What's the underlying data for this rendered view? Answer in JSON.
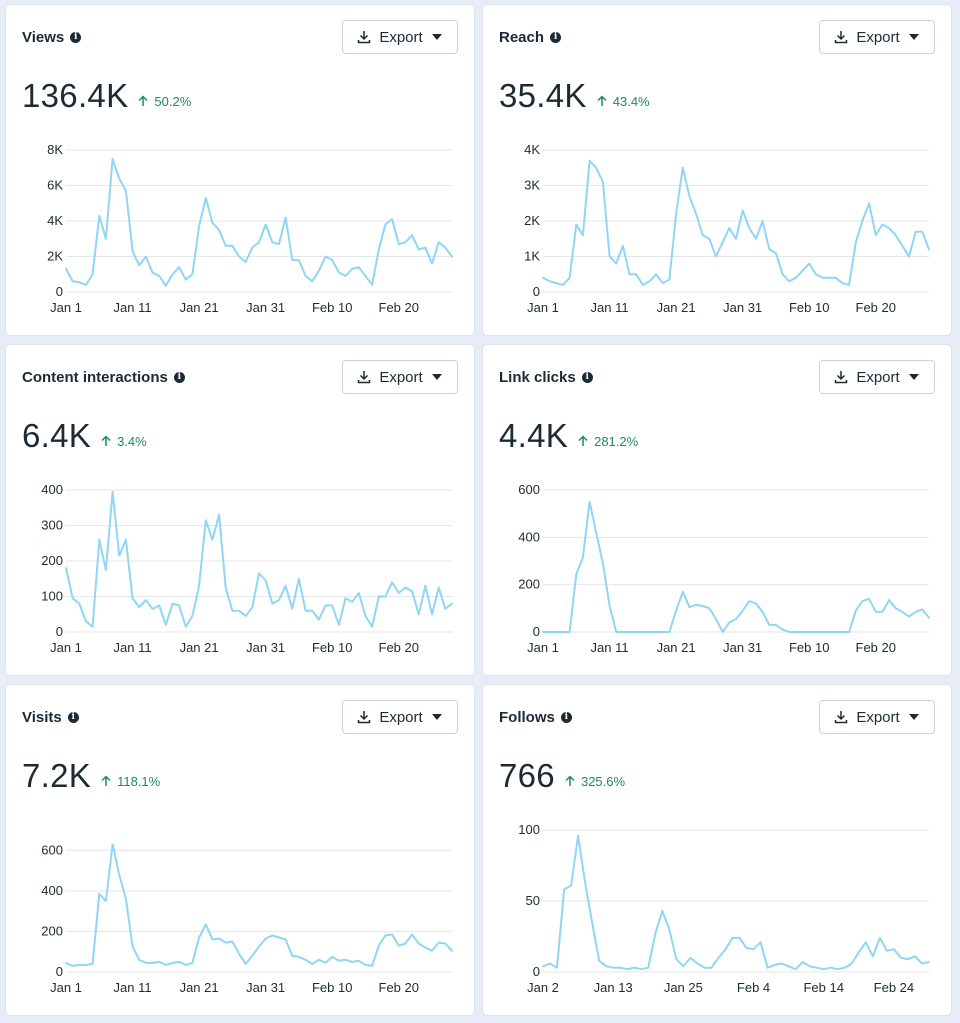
{
  "export_label": "Export",
  "colors": {
    "line": "#8fd6f5",
    "positive": "#1f8a5b",
    "text": "#1c2b33",
    "grid": "#e4e6eb"
  },
  "cards": [
    {
      "title": "Views",
      "value": "136.4K",
      "change": "50.2%",
      "change_direction": "up",
      "chart_data": {
        "type": "line",
        "title": "Views",
        "xlabel": "",
        "ylabel": "",
        "ylim": [
          0,
          8000
        ],
        "y_ticks": [
          0,
          2000,
          4000,
          6000,
          8000
        ],
        "y_tick_labels": [
          "0",
          "2K",
          "4K",
          "6K",
          "8K"
        ],
        "x_tick_labels": [
          "Jan 1",
          "Jan 11",
          "Jan 21",
          "Jan 31",
          "Feb 10",
          "Feb 20"
        ],
        "x_tick_indices": [
          0,
          10,
          20,
          30,
          40,
          50
        ],
        "values": [
          1300,
          600,
          550,
          400,
          1000,
          4300,
          3000,
          7500,
          6400,
          5700,
          2300,
          1500,
          2000,
          1100,
          900,
          350,
          1000,
          1400,
          700,
          1000,
          3700,
          5300,
          3900,
          3500,
          2600,
          2600,
          2000,
          1700,
          2500,
          2800,
          3800,
          2800,
          2700,
          4200,
          1800,
          1800,
          900,
          600,
          1200,
          2000,
          1800,
          1100,
          900,
          1300,
          1400,
          900,
          400,
          2400,
          3800,
          4100,
          2700,
          2800,
          3200,
          2400,
          2500,
          1600,
          2800,
          2500,
          2000
        ]
      }
    },
    {
      "title": "Reach",
      "value": "35.4K",
      "change": "43.4%",
      "change_direction": "up",
      "chart_data": {
        "type": "line",
        "title": "Reach",
        "xlabel": "",
        "ylabel": "",
        "ylim": [
          0,
          4000
        ],
        "y_ticks": [
          0,
          1000,
          2000,
          3000,
          4000
        ],
        "y_tick_labels": [
          "0",
          "1K",
          "2K",
          "3K",
          "4K"
        ],
        "x_tick_labels": [
          "Jan 1",
          "Jan 11",
          "Jan 21",
          "Jan 31",
          "Feb 10",
          "Feb 20"
        ],
        "x_tick_indices": [
          0,
          10,
          20,
          30,
          40,
          50
        ],
        "values": [
          400,
          300,
          250,
          200,
          400,
          1900,
          1600,
          3700,
          3500,
          3100,
          1000,
          800,
          1300,
          500,
          500,
          200,
          300,
          500,
          250,
          350,
          2200,
          3500,
          2700,
          2200,
          1600,
          1500,
          1000,
          1400,
          1800,
          1500,
          2300,
          1800,
          1500,
          2000,
          1200,
          1100,
          500,
          300,
          400,
          600,
          800,
          500,
          400,
          400,
          400,
          250,
          200,
          1400,
          2000,
          2500,
          1600,
          1900,
          1800,
          1600,
          1300,
          1000,
          1700,
          1700,
          1200
        ]
      }
    },
    {
      "title": "Content interactions",
      "value": "6.4K",
      "change": "3.4%",
      "change_direction": "up",
      "chart_data": {
        "type": "line",
        "title": "Content interactions",
        "xlabel": "",
        "ylabel": "",
        "ylim": [
          0,
          400
        ],
        "y_ticks": [
          0,
          100,
          200,
          300,
          400
        ],
        "y_tick_labels": [
          "0",
          "100",
          "200",
          "300",
          "400"
        ],
        "x_tick_labels": [
          "Jan 1",
          "Jan 11",
          "Jan 21",
          "Jan 31",
          "Feb 10",
          "Feb 20"
        ],
        "x_tick_indices": [
          0,
          10,
          20,
          30,
          40,
          50
        ],
        "values": [
          180,
          95,
          80,
          30,
          15,
          260,
          175,
          395,
          215,
          260,
          95,
          70,
          90,
          65,
          75,
          20,
          80,
          75,
          15,
          45,
          130,
          315,
          260,
          330,
          125,
          60,
          60,
          45,
          70,
          165,
          145,
          80,
          90,
          130,
          65,
          150,
          60,
          60,
          35,
          75,
          75,
          20,
          95,
          85,
          110,
          45,
          15,
          100,
          100,
          140,
          110,
          125,
          115,
          50,
          130,
          50,
          125,
          65,
          80
        ]
      }
    },
    {
      "title": "Link clicks",
      "value": "4.4K",
      "change": "281.2%",
      "change_direction": "up",
      "chart_data": {
        "type": "line",
        "title": "Link clicks",
        "xlabel": "",
        "ylabel": "",
        "ylim": [
          0,
          600
        ],
        "y_ticks": [
          0,
          200,
          400,
          600
        ],
        "y_tick_labels": [
          "0",
          "200",
          "400",
          "600"
        ],
        "x_tick_labels": [
          "Jan 1",
          "Jan 11",
          "Jan 21",
          "Jan 31",
          "Feb 10",
          "Feb 20"
        ],
        "x_tick_indices": [
          0,
          10,
          20,
          30,
          40,
          50
        ],
        "values": [
          0,
          0,
          0,
          0,
          0,
          245,
          315,
          550,
          420,
          290,
          110,
          0,
          0,
          0,
          0,
          0,
          0,
          0,
          0,
          0,
          90,
          170,
          105,
          115,
          110,
          100,
          55,
          0,
          40,
          55,
          90,
          130,
          120,
          85,
          30,
          30,
          10,
          0,
          0,
          0,
          0,
          0,
          0,
          0,
          0,
          0,
          0,
          90,
          130,
          140,
          85,
          85,
          135,
          100,
          85,
          65,
          85,
          95,
          60
        ]
      }
    },
    {
      "title": "Visits",
      "value": "7.2K",
      "change": "118.1%",
      "change_direction": "up",
      "chart_data": {
        "type": "line",
        "title": "Visits",
        "xlabel": "",
        "ylabel": "",
        "ylim": [
          0,
          700
        ],
        "y_ticks": [
          0,
          200,
          400,
          600
        ],
        "y_tick_labels": [
          "0",
          "200",
          "400",
          "600"
        ],
        "x_tick_labels": [
          "Jan 1",
          "Jan 11",
          "Jan 21",
          "Jan 31",
          "Feb 10",
          "Feb 20"
        ],
        "x_tick_indices": [
          0,
          10,
          20,
          30,
          40,
          50
        ],
        "values": [
          45,
          30,
          35,
          35,
          40,
          385,
          350,
          630,
          480,
          360,
          125,
          60,
          45,
          45,
          50,
          35,
          45,
          50,
          35,
          45,
          170,
          235,
          160,
          165,
          145,
          150,
          90,
          40,
          80,
          125,
          165,
          180,
          170,
          160,
          80,
          75,
          60,
          40,
          60,
          45,
          75,
          55,
          60,
          50,
          55,
          35,
          30,
          130,
          180,
          185,
          130,
          140,
          185,
          140,
          120,
          105,
          145,
          140,
          105
        ]
      }
    },
    {
      "title": "Follows",
      "value": "766",
      "change": "325.6%",
      "change_direction": "up",
      "chart_data": {
        "type": "line",
        "title": "Follows",
        "xlabel": "",
        "ylabel": "",
        "ylim": [
          0,
          100
        ],
        "y_ticks": [
          0,
          50,
          100
        ],
        "y_tick_labels": [
          "0",
          "50",
          "100"
        ],
        "x_tick_labels": [
          "Jan 2",
          "Jan 13",
          "Jan 25",
          "Feb 4",
          "Feb 14",
          "Feb 24"
        ],
        "x_tick_indices": [
          0,
          10,
          20,
          30,
          40,
          50
        ],
        "values": [
          4,
          6,
          3,
          58,
          61,
          96,
          63,
          35,
          8,
          4,
          3,
          3,
          2,
          3,
          2,
          3,
          27,
          43,
          30,
          9,
          4,
          10,
          6,
          3,
          3,
          10,
          16,
          24,
          24,
          17,
          16,
          21,
          3,
          5,
          6,
          4,
          2,
          7,
          4,
          3,
          2,
          3,
          2,
          3,
          6,
          14,
          21,
          11,
          24,
          15,
          16,
          10,
          9,
          11,
          6,
          7
        ]
      }
    }
  ]
}
